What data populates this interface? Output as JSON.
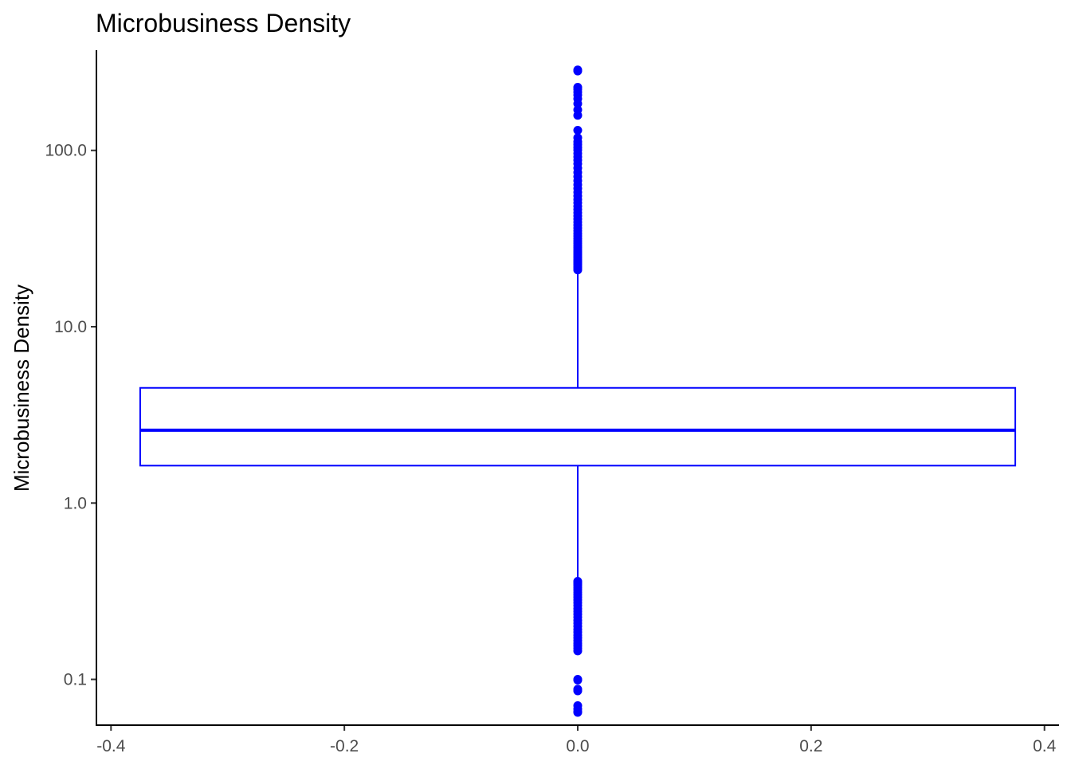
{
  "chart_data": {
    "type": "boxplot",
    "title": "Microbusiness Density",
    "xlabel": "",
    "ylabel": "Microbusiness Density",
    "x_scale": "linear",
    "y_scale": "log10",
    "xlim": [
      -0.4125,
      0.4125
    ],
    "ylim": [
      0.055,
      370
    ],
    "x_ticks": [
      -0.4,
      -0.2,
      0.0,
      0.2,
      0.4
    ],
    "x_tick_labels": [
      "-0.4",
      "-0.2",
      "0.0",
      "0.2",
      "0.4"
    ],
    "y_ticks": [
      0.1,
      1,
      10,
      100
    ],
    "y_tick_labels": [
      "0.1",
      "1.0",
      "10.0",
      "100.0"
    ],
    "grid": false,
    "color": "#0000ff",
    "box": {
      "x": 0,
      "width": 0.75,
      "q1": 1.63,
      "median": 2.59,
      "q3": 4.5,
      "whisker_low": 0.365,
      "whisker_high": 20.8
    },
    "outliers_high": [
      21.0,
      21.5,
      22.0,
      22.5,
      23.0,
      23.5,
      24.0,
      24.6,
      25.2,
      25.8,
      26.5,
      27.2,
      28.0,
      28.8,
      29.7,
      30.6,
      31.6,
      32.7,
      33.8,
      35.0,
      36.3,
      37.7,
      39.2,
      40.8,
      42.5,
      44.3,
      46.2,
      48.2,
      50.4,
      52.7,
      55.2,
      57.9,
      60.8,
      63.9,
      67.3,
      71.0,
      75.0,
      79.4,
      84.0,
      88.0,
      92.0,
      96.0,
      100.5,
      104.0,
      108.0,
      112.0,
      118.0,
      130.0,
      158.0,
      170.0,
      184.0,
      196.0,
      206.0,
      214.0,
      222.0,
      228.0,
      282.0,
      286.0
    ],
    "outliers_low": [
      0.145,
      0.15,
      0.155,
      0.16,
      0.166,
      0.172,
      0.178,
      0.185,
      0.192,
      0.2,
      0.208,
      0.216,
      0.225,
      0.234,
      0.243,
      0.252,
      0.262,
      0.272,
      0.282,
      0.292,
      0.302,
      0.312,
      0.322,
      0.332,
      0.342,
      0.35,
      0.356,
      0.36,
      0.1,
      0.099,
      0.088,
      0.086,
      0.071,
      0.068,
      0.066,
      0.065
    ]
  }
}
